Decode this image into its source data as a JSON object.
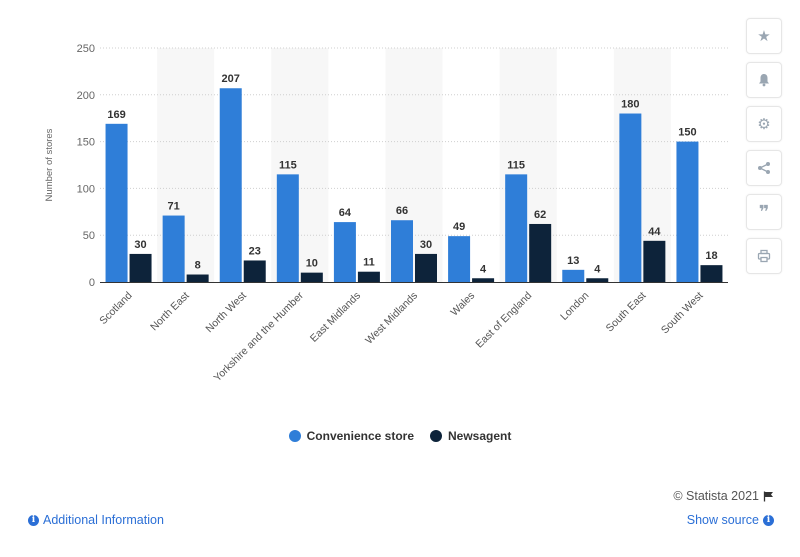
{
  "chart_data": {
    "type": "bar",
    "categories": [
      "Scotland",
      "North East",
      "North West",
      "Yorkshire and the Humber",
      "East Midlands",
      "West Midlands",
      "Wales",
      "East of England",
      "London",
      "South East",
      "South West"
    ],
    "series": [
      {
        "name": "Convenience store",
        "color": "#2f7ed8",
        "values": [
          169,
          71,
          207,
          115,
          64,
          66,
          49,
          115,
          13,
          180,
          150
        ]
      },
      {
        "name": "Newsagent",
        "color": "#0d233a",
        "values": [
          30,
          8,
          23,
          10,
          11,
          30,
          4,
          62,
          4,
          44,
          18
        ]
      }
    ],
    "ylabel": "Number of stores",
    "xlabel": "",
    "ylim": [
      0,
      250
    ],
    "yticks": [
      0,
      50,
      100,
      150,
      200,
      250
    ],
    "grid": true,
    "legend": "bottom"
  },
  "toolbar": {
    "icons": [
      "star-icon",
      "bell-icon",
      "gear-icon",
      "share-icon",
      "quote-icon",
      "print-icon"
    ]
  },
  "footer": {
    "additional_info": "Additional Information",
    "copyright": "© Statista 2021",
    "show_source": "Show source"
  }
}
